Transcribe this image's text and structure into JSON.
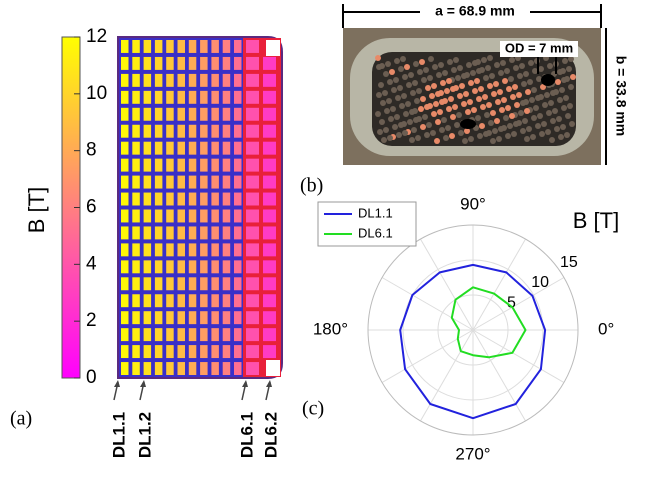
{
  "panel_a": {
    "label": "(a)",
    "colorbar": {
      "title": "B [T]",
      "lim": [
        0,
        12
      ],
      "ticks": [
        0,
        2,
        4,
        6,
        8,
        10,
        12
      ]
    },
    "column_field": [
      11.6,
      11.2,
      10.6,
      10,
      9.4,
      8.8,
      8.1,
      7.4,
      6.7,
      6,
      5.2,
      3.8,
      2.8
    ],
    "conductor_labels": [
      "DL1.1",
      "DL1.2",
      "DL6.1",
      "DL6.2"
    ]
  },
  "panel_b": {
    "label": "(b)",
    "width_label": "a = 68.9 mm",
    "height_label": "b = 33.8 mm",
    "od_label": "OD = 7 mm"
  },
  "panel_c": {
    "label": "(c)",
    "title": "B [T]",
    "rlim": [
      0,
      15
    ],
    "rticks": [
      5,
      10,
      15
    ],
    "angle_ticks": [
      {
        "value": 0,
        "label": "0°"
      },
      {
        "value": 90,
        "label": "90°"
      },
      {
        "value": 180,
        "label": "180°"
      },
      {
        "value": 270,
        "label": "270°"
      }
    ],
    "angles": [
      0,
      30,
      60,
      90,
      120,
      150,
      180,
      210,
      240,
      270,
      300,
      330
    ],
    "series": [
      {
        "name": "DL1.1",
        "color": "#2222dd",
        "values": [
          10.3,
          9.8,
          9.5,
          9.3,
          9.5,
          10,
          10.4,
          11.2,
          12.2,
          12.6,
          12.2,
          11.2
        ]
      },
      {
        "name": "DL6.1",
        "color": "#22dd22",
        "values": [
          7.5,
          6.5,
          6,
          6.1,
          5,
          3.5,
          2,
          2.5,
          3.5,
          3.6,
          4.5,
          6.5
        ]
      }
    ]
  }
}
